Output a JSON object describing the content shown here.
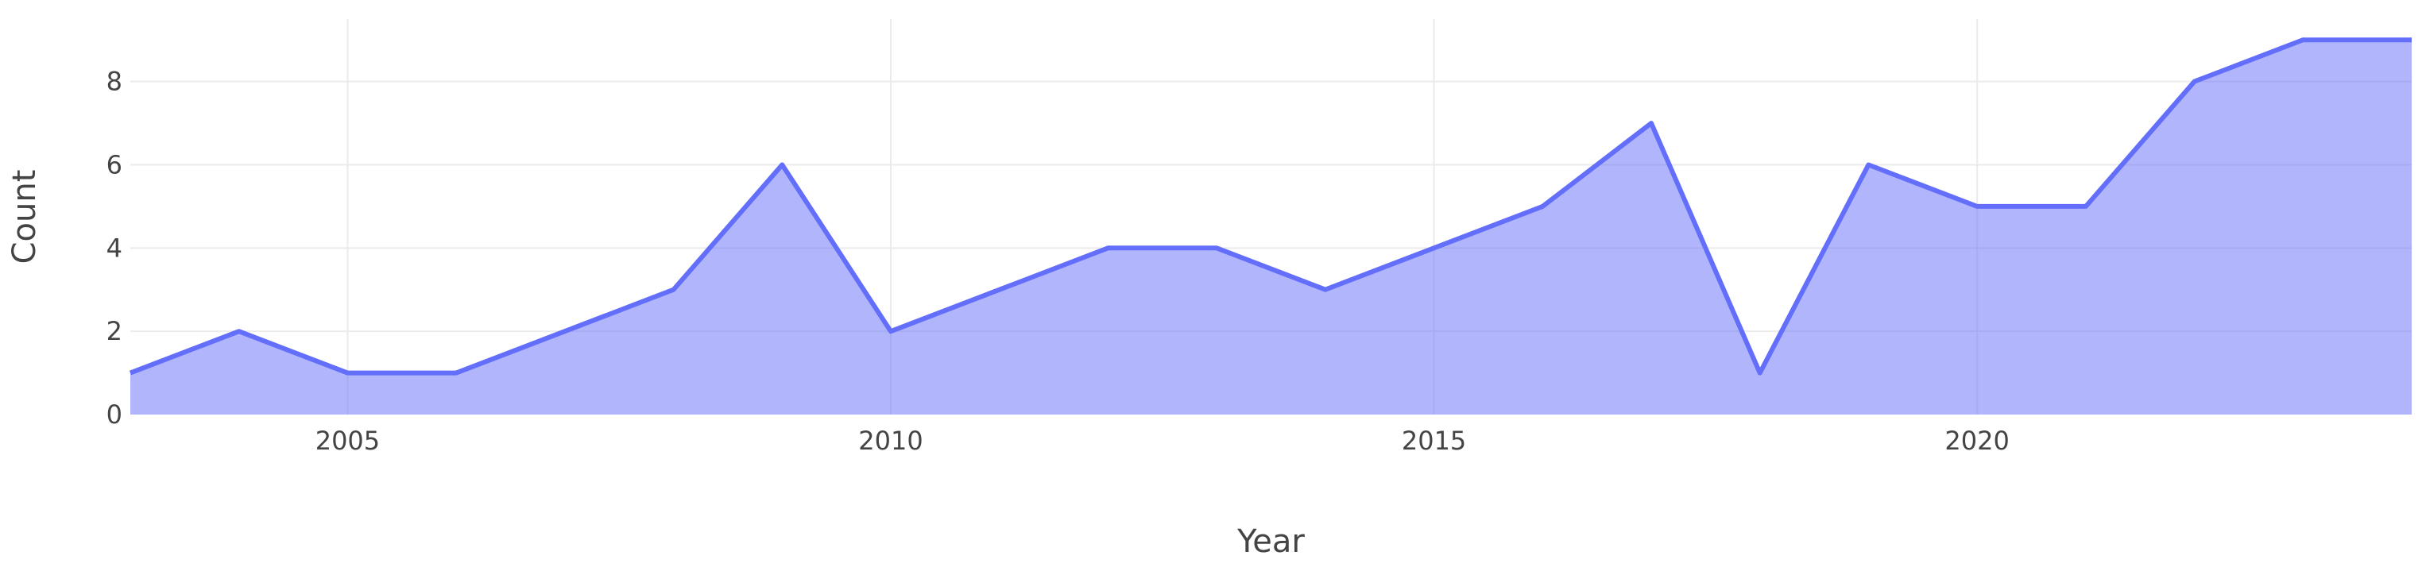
{
  "chart_data": {
    "type": "area",
    "title": "",
    "xlabel": "Year",
    "ylabel": "Count",
    "x": [
      2003,
      2004,
      2005,
      2006,
      2008,
      2009,
      2010,
      2012,
      2013,
      2014,
      2016,
      2017,
      2018,
      2019,
      2020,
      2021,
      2022,
      2023,
      2024
    ],
    "series": [
      {
        "values": [
          1,
          2,
          1,
          1,
          3,
          6,
          2,
          4,
          4,
          3,
          5,
          7,
          1,
          6,
          5,
          5,
          8,
          9,
          9
        ],
        "color": "#636efa"
      }
    ],
    "xlim": [
      2003,
      2024
    ],
    "ylim": [
      0,
      9.5
    ],
    "x_ticks": [
      2005,
      2010,
      2015,
      2020
    ],
    "x_tick_labels": [
      "2005",
      "2010",
      "2015",
      "2020"
    ],
    "y_ticks": [
      0,
      2,
      4,
      6,
      8
    ],
    "y_tick_labels": [
      "0",
      "2",
      "4",
      "6",
      "8"
    ],
    "grid": true,
    "legend": false
  }
}
